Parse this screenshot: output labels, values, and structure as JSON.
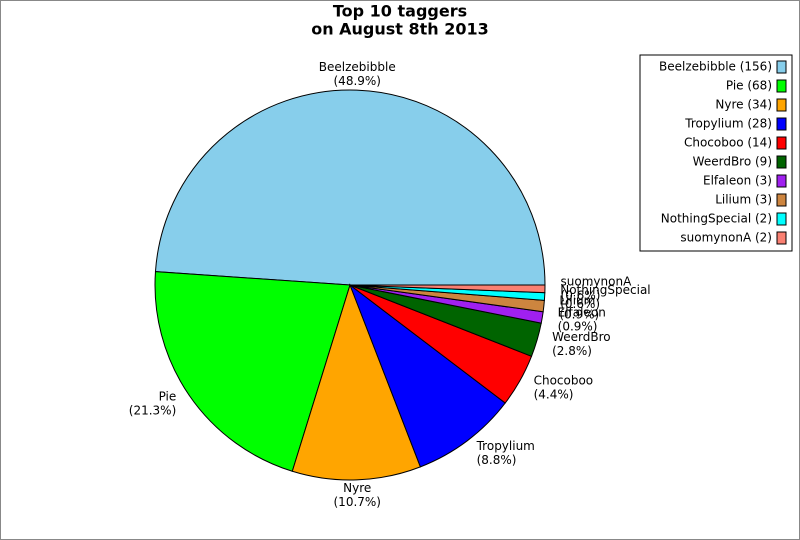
{
  "chart_data": {
    "type": "pie",
    "title": [
      "Top 10 taggers",
      "on August 8th 2013"
    ],
    "categories": [
      "Beelzebibble",
      "Pie",
      "Nyre",
      "Tropylium",
      "Chocoboo",
      "WeerdBro",
      "Elfaleon",
      "Lilium",
      "NothingSpecial",
      "suomynonA"
    ],
    "values": [
      156,
      68,
      34,
      28,
      14,
      9,
      3,
      3,
      2,
      2
    ],
    "slice_labels": [
      "(48.9%)",
      "(21.3%)",
      "(10.7%)",
      "(8.8%)",
      "(4.4%)",
      "(2.8%)",
      "(0.9%)",
      "(0.9%)",
      "(0.6%)",
      "(0.6%)"
    ],
    "legend_labels": [
      "Beelzebibble (156)",
      "Pie (68)",
      "Nyre (34)",
      "Tropylium (28)",
      "Chocoboo (14)",
      "WeerdBro (9)",
      "Elfaleon (3)",
      "Lilium (3)",
      "NothingSpecial (2)",
      "suomynonA (2)"
    ],
    "colors": [
      "#87ceeb",
      "#00ff00",
      "#ffa500",
      "#0000ff",
      "#ff0000",
      "#006400",
      "#a020f0",
      "#cd853f",
      "#00ffff",
      "#fa8072"
    ],
    "legend": "top-right"
  }
}
